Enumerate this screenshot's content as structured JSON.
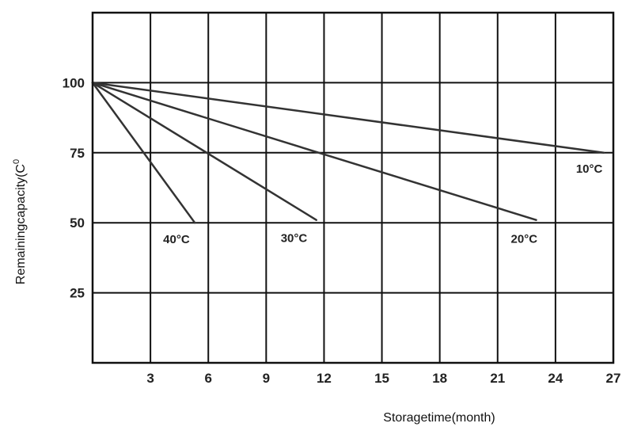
{
  "chart_data": {
    "type": "line",
    "xlabel": "Storagetime(month)",
    "ylabel": "Remainingcapacity(",
    "ylabel_unit": "C",
    "ylabel_sup": "0",
    "x_ticks": [
      "3",
      "6",
      "9",
      "12",
      "15",
      "18",
      "21",
      "24",
      "27"
    ],
    "y_ticks": [
      "100",
      "75",
      "50",
      "25"
    ],
    "xlim": [
      0,
      27
    ],
    "ylim": [
      0,
      125
    ],
    "grid": true,
    "line_color": "#333333",
    "series": [
      {
        "name": "40°C",
        "x": [
          0,
          5.3
        ],
        "y": [
          100,
          50
        ]
      },
      {
        "name": "30°C",
        "x": [
          0,
          11.6
        ],
        "y": [
          100,
          51
        ]
      },
      {
        "name": "20°C",
        "x": [
          0,
          23.0
        ],
        "y": [
          100,
          51
        ]
      },
      {
        "name": "10°C",
        "x": [
          0,
          26.5
        ],
        "y": [
          100,
          75
        ]
      }
    ]
  }
}
